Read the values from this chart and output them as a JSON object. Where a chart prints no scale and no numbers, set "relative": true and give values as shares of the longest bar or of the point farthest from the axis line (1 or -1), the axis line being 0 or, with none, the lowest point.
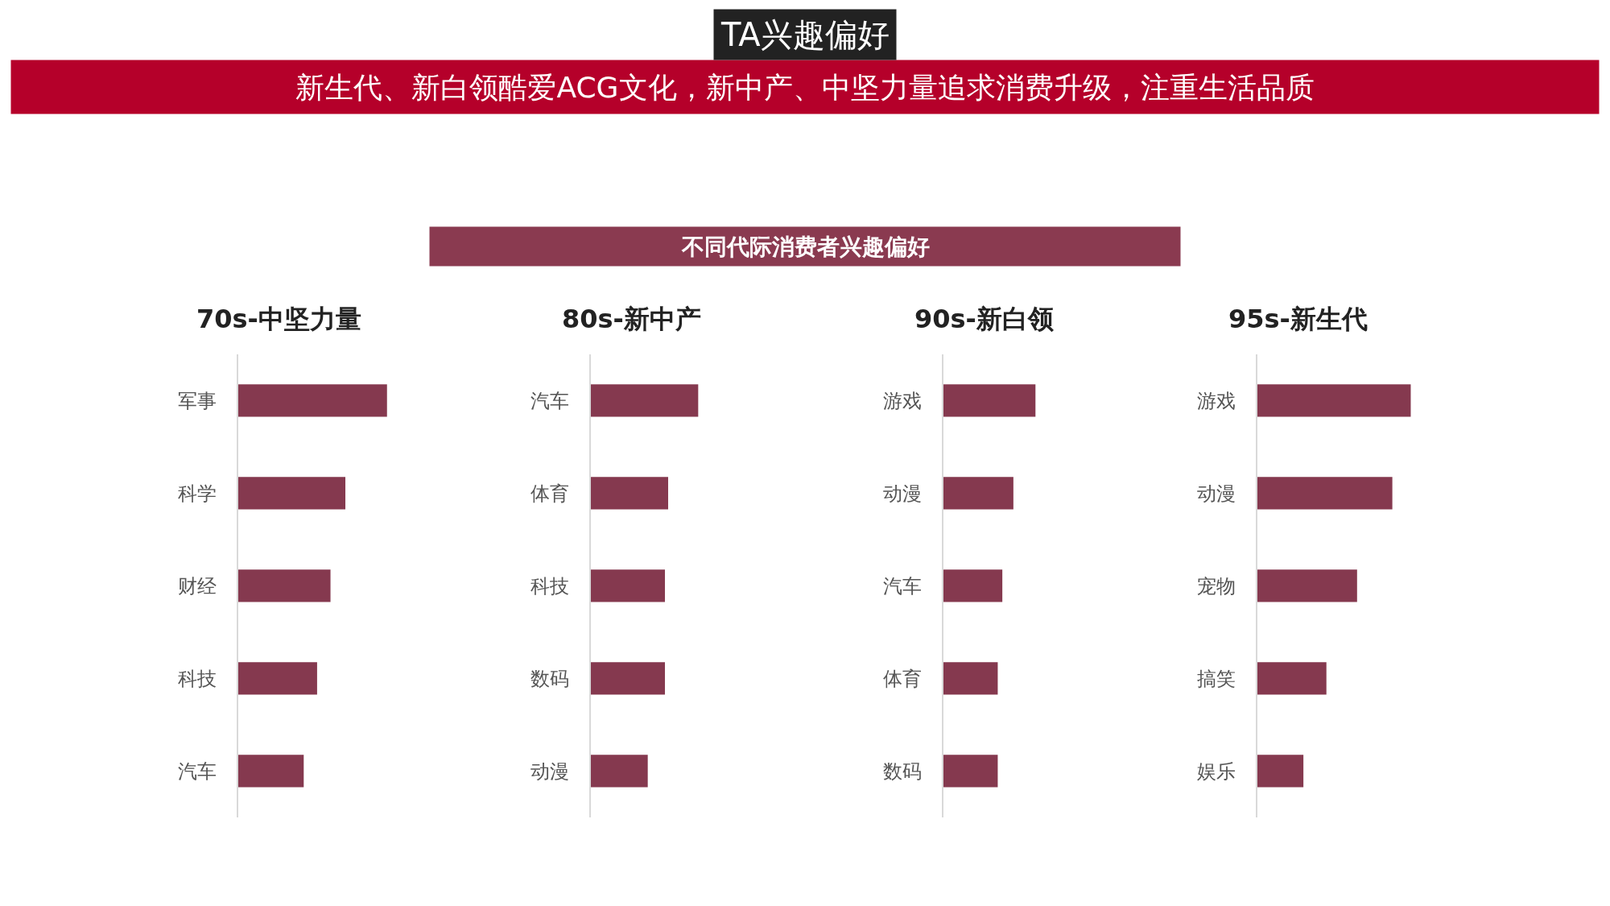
{
  "chart_data": [
    {
      "type": "other",
      "title": "TA兴趣偏好",
      "subtitle": "新生代、新白领酷爱ACG文化，新中产、中坚力量追求消费升级，注重生活品质",
      "annotations": [
        "不同代际消费者兴趣偏好"
      ]
    },
    {
      "type": "bar",
      "orientation": "horizontal",
      "relative": true,
      "title": "70s-中坚力量",
      "categories": [
        "军事",
        "科学",
        "财经",
        "科技",
        "汽车"
      ],
      "values": [
        1,
        0.72,
        0.62,
        0.53,
        0.44
      ],
      "color": "#85394f",
      "tick_labels": "y"
    },
    {
      "type": "bar",
      "orientation": "horizontal",
      "relative": true,
      "title": "80s-新中产",
      "categories": [
        "汽车",
        "体育",
        "科技",
        "数码",
        "动漫"
      ],
      "values": [
        1,
        0.72,
        0.69,
        0.69,
        0.53
      ],
      "color": "#85394f",
      "tick_labels": "y"
    },
    {
      "type": "bar",
      "orientation": "horizontal",
      "relative": true,
      "title": "90s-新白领",
      "categories": [
        "游戏",
        "动漫",
        "汽车",
        "体育",
        "数码"
      ],
      "values": [
        1,
        0.76,
        0.64,
        0.59,
        0.59
      ],
      "color": "#85394f",
      "tick_labels": "y"
    },
    {
      "type": "bar",
      "orientation": "horizontal",
      "relative": true,
      "title": "95s-新生代",
      "categories": [
        "游戏",
        "动漫",
        "宠物",
        "搞笑",
        "娱乐"
      ],
      "values": [
        1,
        0.88,
        0.65,
        0.45,
        0.3
      ],
      "color": "#85394f",
      "tick_labels": "y"
    }
  ]
}
